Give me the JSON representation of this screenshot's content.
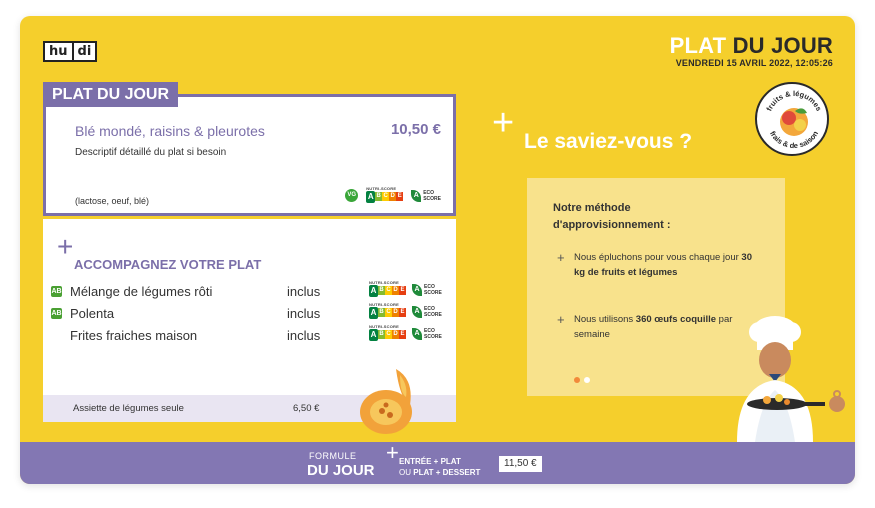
{
  "brand": {
    "logo_left": "hu",
    "logo_right": "di"
  },
  "header": {
    "title_part1": "PLAT",
    "title_part2": "DU JOUR",
    "datetime": "VENDREDI 15 AVRIL 2022, 12:05:26"
  },
  "badge": {
    "text_top": "fruits & légumes",
    "text_bottom": "frais & de saison"
  },
  "dish": {
    "tab_label": "PLAT DU JOUR",
    "name": "Blé mondé, raisins & pleurotes",
    "price": "10,50 €",
    "description": "Descriptif détaillé du plat si besoin",
    "allergens": "(lactose, oeuf, blé)",
    "vg_label": "VG",
    "nutriscore_label": "NUTRI-SCORE",
    "eco_label_line1": "ECO",
    "eco_label_line2": "SCORE"
  },
  "nutriscore": {
    "letters": [
      "A",
      "B",
      "C",
      "D",
      "E"
    ],
    "colors": [
      "#038141",
      "#85bb2f",
      "#fecb02",
      "#ee8100",
      "#e63e11"
    ]
  },
  "accompaniments": {
    "title": "ACCOMPAGNEZ VOTRE PLAT",
    "bio_label": "AB",
    "items": [
      {
        "name": "Mélange de légumes rôti",
        "status": "inclus",
        "bio": true
      },
      {
        "name": "Polenta",
        "status": "inclus",
        "bio": true
      },
      {
        "name": "Frites fraiches maison",
        "status": "inclus",
        "bio": false
      }
    ],
    "footer_name": "Assiette de légumes seule",
    "footer_price": "6,50 €"
  },
  "did_you_know": {
    "title": "Le saviez-vous ?",
    "heading_line1": "Notre méthode",
    "heading_line2": "d'approvisionnement :",
    "fact1_prefix": "Nous épluchons pour vous chaque jour ",
    "fact1_bold": "30 kg de fruits et légumes",
    "fact2_prefix": "Nous utilisons ",
    "fact2_bold": "360 œufs coquille",
    "fact2_suffix": " par semaine",
    "active_slide": 1,
    "slide_count": 2
  },
  "formula": {
    "label": "FORMULE",
    "title": "DU JOUR",
    "option1": "ENTRÉE + PLAT",
    "option2_prefix": "OU ",
    "option2": "PLAT + DESSERT",
    "price": "11,50 €"
  },
  "colors": {
    "background": "#f5cf2c",
    "accent_purple": "#7b6fa9",
    "info_card": "#f8e28c",
    "bottom_bar": "#8377b3"
  }
}
